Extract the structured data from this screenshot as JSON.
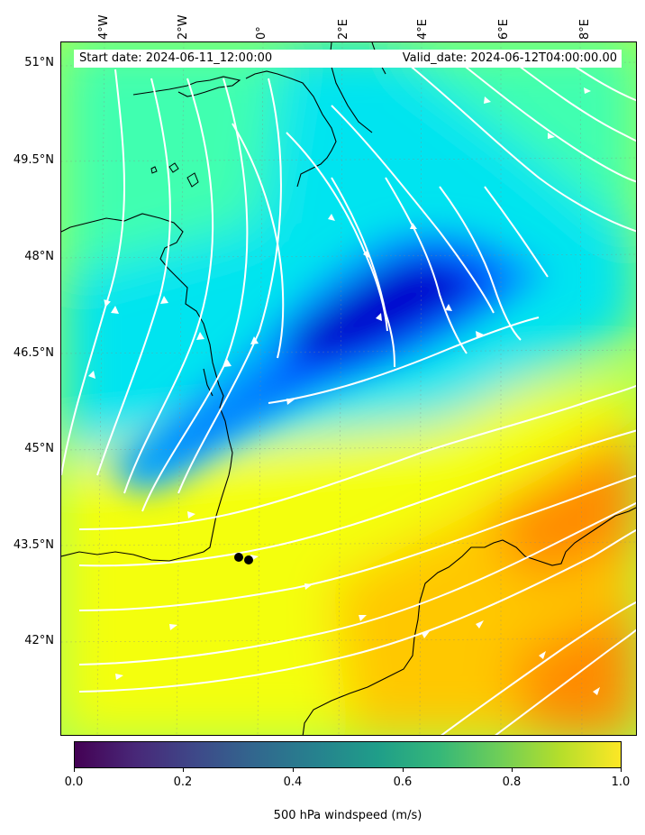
{
  "map": {
    "start_date": "Start date: 2024-06-11_12:00:00",
    "valid_date": "Valid_date: 2024-06-12T04:00:00.00",
    "lon_labels": [
      "4°W",
      "2°W",
      "0°",
      "2°E",
      "4°E",
      "6°E",
      "8°E"
    ],
    "lat_labels": [
      "51°N",
      "49.5°N",
      "48°N",
      "46.5°N",
      "45°N",
      "43.5°N",
      "42°N"
    ],
    "field": "500 hPa windspeed",
    "palette_colors": [
      "#0000cd",
      "#0050ff",
      "#00a0ff",
      "#00e4f0",
      "#40ffb0",
      "#a8ff50",
      "#f4ff10",
      "#ffc800",
      "#ff8a00",
      "#ff5000"
    ],
    "coast_color": "#000000",
    "streamline_color": "#ffffff",
    "station_markers": 2
  },
  "colorbar": {
    "title": "500 hPa windspeed (m/s)",
    "ticks": [
      "0.0",
      "0.2",
      "0.4",
      "0.6",
      "0.8",
      "1.0"
    ],
    "colors": [
      "#440154",
      "#482878",
      "#3e4989",
      "#31688e",
      "#26828e",
      "#1f9e89",
      "#35b779",
      "#6ece58",
      "#b5de2b",
      "#fde725"
    ]
  }
}
